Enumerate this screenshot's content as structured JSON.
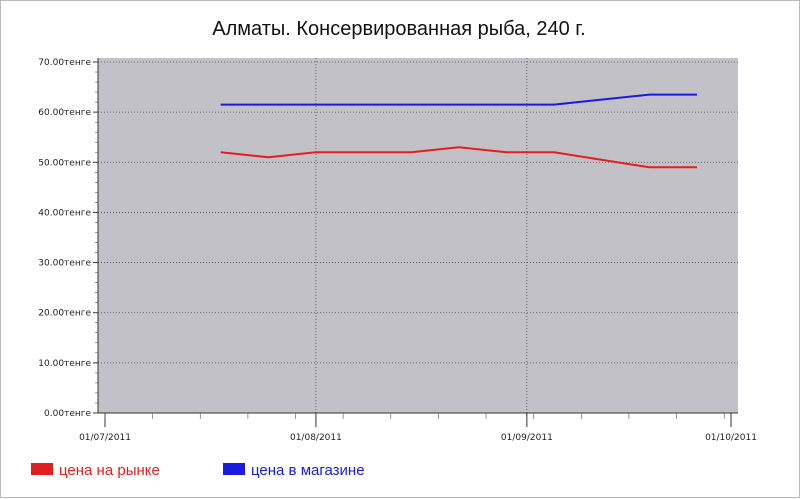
{
  "chart_data": {
    "type": "line",
    "title": "Алматы. Консервированная рыба, 240 г.",
    "xlabel": "",
    "ylabel": "",
    "x_ticks": [
      "01/07/2011",
      "01/08/2011",
      "01/09/2011",
      "01/10/2011"
    ],
    "x_range": [
      "2011-07-01",
      "2011-10-01"
    ],
    "y_ticks": [
      "0.00тенге",
      "10.00тенге",
      "20.00тенге",
      "30.00тенге",
      "40.00тенге",
      "50.00тенге",
      "60.00тенге",
      "70.00тенге"
    ],
    "ylim": [
      0,
      70
    ],
    "grid": true,
    "legend_position": "bottom-left",
    "colors": {
      "plot_bg": "#c3c1c8",
      "grid": "#4a4a4a"
    },
    "series": [
      {
        "name": "цена на рынке",
        "color": "#e02020",
        "points": [
          {
            "x": "2011-07-18",
            "y": 52
          },
          {
            "x": "2011-07-25",
            "y": 51
          },
          {
            "x": "2011-08-01",
            "y": 52
          },
          {
            "x": "2011-08-08",
            "y": 52
          },
          {
            "x": "2011-08-15",
            "y": 52
          },
          {
            "x": "2011-08-22",
            "y": 53
          },
          {
            "x": "2011-08-29",
            "y": 52
          },
          {
            "x": "2011-09-05",
            "y": 52
          },
          {
            "x": "2011-09-19",
            "y": 49
          },
          {
            "x": "2011-09-26",
            "y": 49
          }
        ]
      },
      {
        "name": "цена в магазине",
        "color": "#1a1ae0",
        "points": [
          {
            "x": "2011-07-18",
            "y": 61.5
          },
          {
            "x": "2011-08-01",
            "y": 61.5
          },
          {
            "x": "2011-08-15",
            "y": 61.5
          },
          {
            "x": "2011-08-29",
            "y": 61.5
          },
          {
            "x": "2011-09-05",
            "y": 61.5
          },
          {
            "x": "2011-09-19",
            "y": 63.5
          },
          {
            "x": "2011-09-26",
            "y": 63.5
          }
        ]
      }
    ]
  }
}
